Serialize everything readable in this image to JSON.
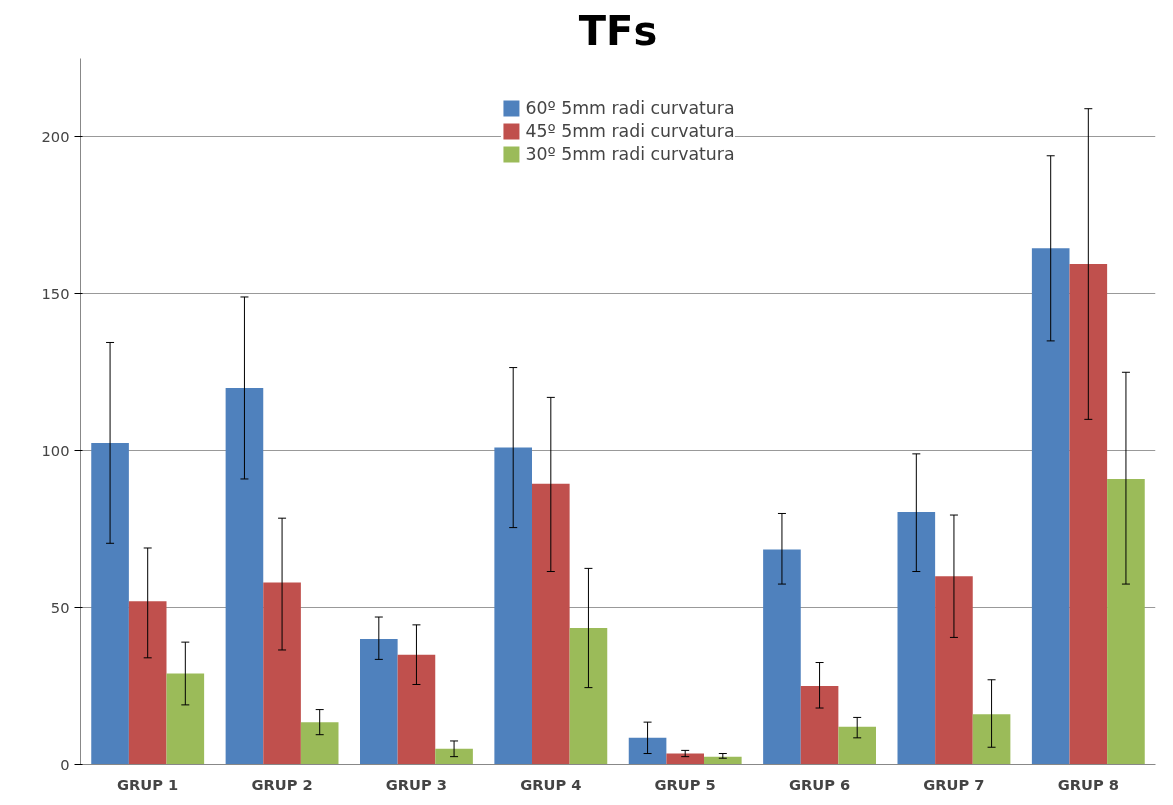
{
  "chart_data": {
    "type": "bar",
    "title": "TFs",
    "categories": [
      "GRUP 1",
      "GRUP 2",
      "GRUP 3",
      "GRUP 4",
      "GRUP 5",
      "GRUP 6",
      "GRUP 7",
      "GRUP 8"
    ],
    "series": [
      {
        "name": "60º 5mm radi curvatura",
        "color": "#4f81bd",
        "values": [
          102.5,
          120,
          40,
          101,
          8.5,
          68.5,
          80.5,
          164.5
        ],
        "errors": [
          [
            70.5,
            134.5
          ],
          [
            91,
            149
          ],
          [
            33.5,
            47
          ],
          [
            75.5,
            126.5
          ],
          [
            3.5,
            13.5
          ],
          [
            57.5,
            80
          ],
          [
            61.5,
            99
          ],
          [
            135,
            194
          ]
        ]
      },
      {
        "name": "45º 5mm radi curvatura",
        "color": "#c0504d",
        "values": [
          52,
          58,
          35,
          89.5,
          3.5,
          25,
          60,
          159.5
        ],
        "errors": [
          [
            34,
            69
          ],
          [
            36.5,
            78.5
          ],
          [
            25.5,
            44.5
          ],
          [
            61.5,
            117
          ],
          [
            2.5,
            4.5
          ],
          [
            18,
            32.5
          ],
          [
            40.5,
            79.5
          ],
          [
            110,
            209
          ]
        ]
      },
      {
        "name": "30º 5mm radi curvatura",
        "color": "#9bbb59",
        "values": [
          29,
          13.5,
          5,
          43.5,
          2.5,
          12,
          16,
          91
        ],
        "errors": [
          [
            19,
            39
          ],
          [
            9.5,
            17.5
          ],
          [
            2.5,
            7.5
          ],
          [
            24.5,
            62.5
          ],
          [
            2,
            3.5
          ],
          [
            8.5,
            15
          ],
          [
            5.5,
            27
          ],
          [
            57.5,
            125
          ]
        ]
      }
    ],
    "ylim": [
      0,
      225
    ],
    "yticks": [
      0,
      50,
      100,
      150,
      200
    ],
    "grid": "y",
    "legend": "top"
  }
}
